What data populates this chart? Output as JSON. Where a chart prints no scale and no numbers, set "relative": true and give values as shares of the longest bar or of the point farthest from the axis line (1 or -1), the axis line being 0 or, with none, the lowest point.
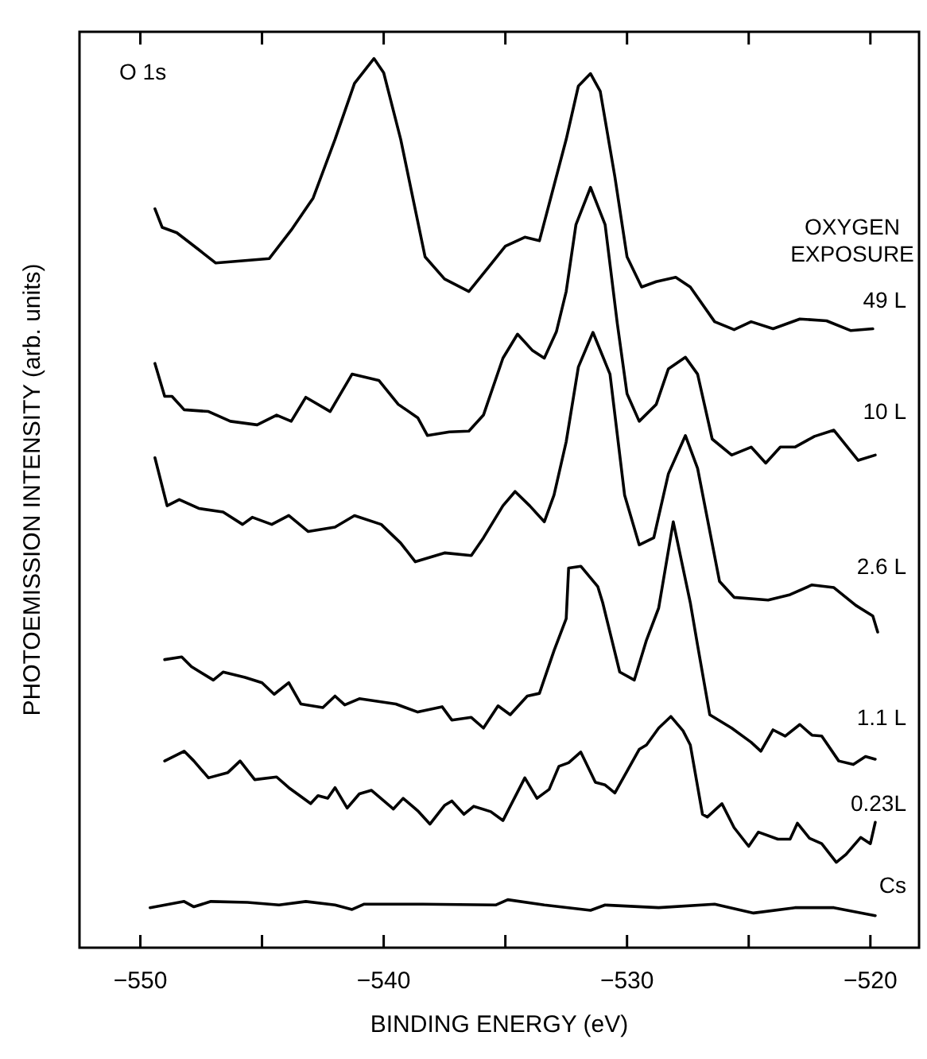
{
  "chart_data": {
    "type": "line",
    "relative": true,
    "xlabel": "BINDING ENERGY (eV)",
    "ylabel": "PHOTOEMISSION INTENSITY (arb. units)",
    "legend_title": "OXYGEN EXPOSURE",
    "annotations": [
      "O 1s"
    ],
    "marker": "none",
    "line_style": "solid",
    "legend": false,
    "xlim": [
      -552.5,
      -518
    ],
    "xticks": [
      -550,
      {
        "value": -545,
        "label": null
      },
      -540,
      {
        "value": -535,
        "label": null
      },
      -530,
      {
        "value": -525,
        "label": null
      },
      -520
    ],
    "series": [
      {
        "name": "49 L",
        "color": "#000000",
        "x": [
          -549.4,
          -549.1,
          -548.5,
          -547.6,
          -546.9,
          -545.6,
          -544.7,
          -543.8,
          -542.9,
          -542.0,
          -541.2,
          -540.4,
          -540.0,
          -539.3,
          -538.3,
          -537.5,
          -536.5,
          -535.7,
          -535.0,
          -534.2,
          -533.6,
          -532.5,
          -532.0,
          -531.5,
          -531.1,
          -530.5,
          -530.0,
          -529.4,
          -528.8,
          -528.0,
          -527.4,
          -526.4,
          -525.6,
          -524.9,
          -524.0,
          -522.9,
          -521.8,
          -520.8,
          -519.9
        ],
        "values": [
          0.831,
          0.81,
          0.804,
          0.785,
          0.77,
          0.773,
          0.775,
          0.807,
          0.843,
          0.909,
          0.972,
          1.0,
          0.984,
          0.909,
          0.777,
          0.752,
          0.738,
          0.765,
          0.789,
          0.799,
          0.795,
          0.909,
          0.969,
          0.983,
          0.963,
          0.867,
          0.777,
          0.743,
          0.749,
          0.754,
          0.743,
          0.704,
          0.695,
          0.704,
          0.696,
          0.707,
          0.705,
          0.694,
          0.696
        ]
      },
      {
        "name": "10 L",
        "color": "#000000",
        "x": [
          -549.4,
          -549.0,
          -548.7,
          -548.2,
          -547.2,
          -546.3,
          -545.2,
          -544.4,
          -543.8,
          -543.2,
          -542.2,
          -541.3,
          -540.2,
          -539.4,
          -538.6,
          -538.2,
          -537.3,
          -536.5,
          -535.9,
          -535.1,
          -534.5,
          -533.9,
          -533.4,
          -532.9,
          -532.5,
          -532.1,
          -531.5,
          -530.9,
          -530.4,
          -530.0,
          -529.5,
          -528.8,
          -528.3,
          -527.6,
          -527.1,
          -526.5,
          -525.7,
          -524.9,
          -524.3,
          -523.7,
          -523.1,
          -522.3,
          -521.5,
          -520.5,
          -519.8
        ],
        "values": [
          0.657,
          0.62,
          0.62,
          0.605,
          0.603,
          0.592,
          0.588,
          0.599,
          0.592,
          0.619,
          0.603,
          0.645,
          0.638,
          0.611,
          0.596,
          0.576,
          0.58,
          0.581,
          0.599,
          0.663,
          0.69,
          0.672,
          0.663,
          0.693,
          0.738,
          0.813,
          0.855,
          0.813,
          0.702,
          0.623,
          0.592,
          0.611,
          0.651,
          0.664,
          0.645,
          0.572,
          0.554,
          0.563,
          0.545,
          0.563,
          0.563,
          0.575,
          0.582,
          0.548,
          0.554
        ]
      },
      {
        "name": "2.6 L",
        "color": "#000000",
        "x": [
          -549.4,
          -548.9,
          -548.4,
          -547.6,
          -546.6,
          -545.8,
          -545.4,
          -544.6,
          -543.9,
          -543.1,
          -542.0,
          -541.2,
          -540.1,
          -539.3,
          -538.7,
          -537.5,
          -536.4,
          -535.9,
          -535.1,
          -534.6,
          -534.0,
          -533.4,
          -533.0,
          -532.5,
          -532.0,
          -531.4,
          -530.7,
          -530.1,
          -529.5,
          -528.9,
          -528.3,
          -527.6,
          -527.1,
          -526.2,
          -525.6,
          -524.2,
          -523.3,
          -522.4,
          -521.5,
          -520.6,
          -519.9,
          -519.7
        ],
        "values": [
          0.551,
          0.497,
          0.504,
          0.494,
          0.49,
          0.476,
          0.484,
          0.476,
          0.486,
          0.468,
          0.473,
          0.486,
          0.476,
          0.455,
          0.434,
          0.444,
          0.441,
          0.461,
          0.497,
          0.513,
          0.497,
          0.479,
          0.509,
          0.569,
          0.653,
          0.692,
          0.645,
          0.509,
          0.453,
          0.461,
          0.533,
          0.576,
          0.539,
          0.412,
          0.394,
          0.391,
          0.397,
          0.408,
          0.405,
          0.385,
          0.373,
          0.355
        ]
      },
      {
        "name": "1.1 L",
        "color": "#000000",
        "x": [
          -549.0,
          -548.3,
          -547.9,
          -547.0,
          -546.6,
          -545.7,
          -545.0,
          -544.5,
          -543.9,
          -543.4,
          -542.5,
          -542.0,
          -541.6,
          -541.0,
          -539.5,
          -538.6,
          -537.6,
          -537.2,
          -536.4,
          -535.9,
          -535.3,
          -534.8,
          -534.1,
          -533.6,
          -533.0,
          -532.5,
          -532.4,
          -531.9,
          -531.2,
          -531.0,
          -530.3,
          -529.7,
          -529.2,
          -528.7,
          -528.1,
          -527.4,
          -527.1,
          -526.6,
          -525.7,
          -524.9,
          -524.5,
          -524.0,
          -523.5,
          -522.9,
          -522.4,
          -522.0,
          -521.3,
          -520.7,
          -520.2,
          -519.8
        ],
        "values": [
          0.324,
          0.327,
          0.316,
          0.301,
          0.31,
          0.304,
          0.298,
          0.285,
          0.298,
          0.274,
          0.27,
          0.283,
          0.273,
          0.28,
          0.274,
          0.265,
          0.271,
          0.256,
          0.259,
          0.247,
          0.272,
          0.262,
          0.283,
          0.286,
          0.334,
          0.37,
          0.427,
          0.429,
          0.406,
          0.388,
          0.31,
          0.301,
          0.346,
          0.382,
          0.479,
          0.388,
          0.34,
          0.262,
          0.247,
          0.231,
          0.221,
          0.245,
          0.238,
          0.251,
          0.239,
          0.238,
          0.21,
          0.206,
          0.215,
          0.212
        ]
      },
      {
        "name": "0.23L",
        "color": "#000000",
        "x": [
          -549.0,
          -548.2,
          -547.8,
          -547.2,
          -546.4,
          -545.9,
          -545.3,
          -544.4,
          -543.9,
          -543.0,
          -542.7,
          -542.3,
          -542.0,
          -541.5,
          -541.0,
          -540.5,
          -539.6,
          -539.2,
          -538.6,
          -538.1,
          -537.5,
          -537.2,
          -536.7,
          -536.3,
          -535.6,
          -535.1,
          -534.2,
          -533.7,
          -533.2,
          -532.8,
          -532.4,
          -531.9,
          -531.3,
          -530.9,
          -530.5,
          -529.5,
          -529.2,
          -528.7,
          -528.2,
          -527.7,
          -527.4,
          -526.9,
          -526.7,
          -526.1,
          -525.6,
          -525.0,
          -524.6,
          -523.8,
          -523.3,
          -523.0,
          -522.5,
          -522.0,
          -521.4,
          -521.0,
          -520.4,
          -520.0,
          -519.8
        ],
        "values": [
          0.21,
          0.221,
          0.21,
          0.191,
          0.197,
          0.21,
          0.189,
          0.192,
          0.18,
          0.162,
          0.171,
          0.168,
          0.18,
          0.157,
          0.173,
          0.177,
          0.156,
          0.168,
          0.154,
          0.139,
          0.16,
          0.165,
          0.15,
          0.159,
          0.153,
          0.143,
          0.191,
          0.168,
          0.178,
          0.204,
          0.208,
          0.22,
          0.186,
          0.183,
          0.174,
          0.223,
          0.228,
          0.247,
          0.26,
          0.244,
          0.228,
          0.15,
          0.147,
          0.162,
          0.135,
          0.114,
          0.13,
          0.122,
          0.122,
          0.14,
          0.123,
          0.117,
          0.096,
          0.105,
          0.124,
          0.117,
          0.141
        ]
      },
      {
        "name": "Cs",
        "color": "#000000",
        "x": [
          -549.6,
          -548.2,
          -547.8,
          -547.1,
          -545.6,
          -544.3,
          -543.2,
          -542.0,
          -541.3,
          -540.8,
          -538.4,
          -535.4,
          -534.9,
          -533.4,
          -531.5,
          -530.9,
          -528.7,
          -526.4,
          -524.8,
          -523.1,
          -521.5,
          -519.8
        ],
        "values": [
          0.045,
          0.052,
          0.046,
          0.052,
          0.051,
          0.048,
          0.052,
          0.048,
          0.043,
          0.049,
          0.049,
          0.048,
          0.054,
          0.048,
          0.042,
          0.048,
          0.045,
          0.049,
          0.039,
          0.045,
          0.045,
          0.036
        ]
      }
    ]
  }
}
